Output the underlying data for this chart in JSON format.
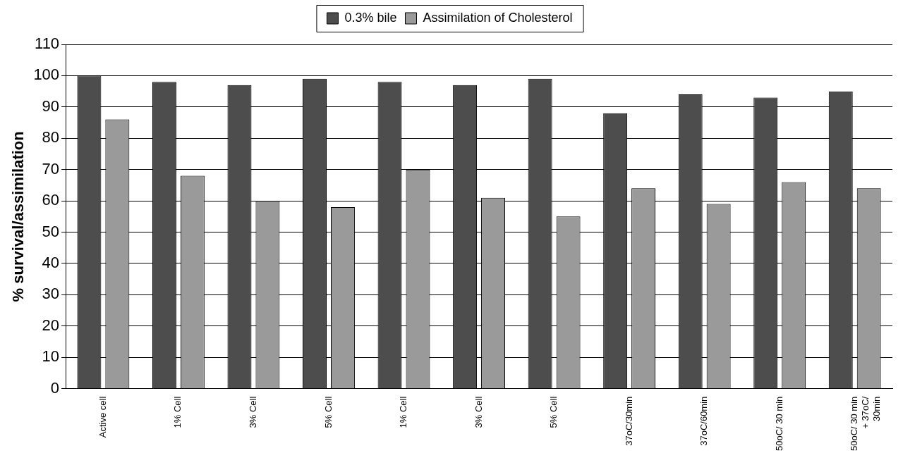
{
  "chart_data": {
    "type": "bar",
    "ylabel": "% survival/assimilation",
    "categories": [
      "Active cell",
      "1% Cell",
      "3% Cell",
      "5% Cell",
      "1% Cell",
      "3% Cell",
      "5% Cell",
      "37oC/30min",
      "37oC/60min",
      "50oC/ 30 min",
      "50oC/ 30 min\n+ 37oC/\n30min"
    ],
    "series": [
      {
        "name": "0.3% bile",
        "color": "#4d4d4d",
        "values": [
          100,
          98,
          97,
          99,
          98,
          97,
          99,
          88,
          94,
          93,
          95
        ]
      },
      {
        "name": "Assimilation of Cholesterol",
        "color": "#9a9a9a",
        "values": [
          86,
          68,
          60,
          58,
          70,
          61,
          55,
          64,
          59,
          66,
          64
        ]
      }
    ],
    "ylim": [
      0,
      110
    ],
    "yticks": [
      0,
      10,
      20,
      30,
      40,
      50,
      60,
      70,
      80,
      90,
      100,
      110
    ],
    "grid": "y",
    "legend": "top"
  }
}
